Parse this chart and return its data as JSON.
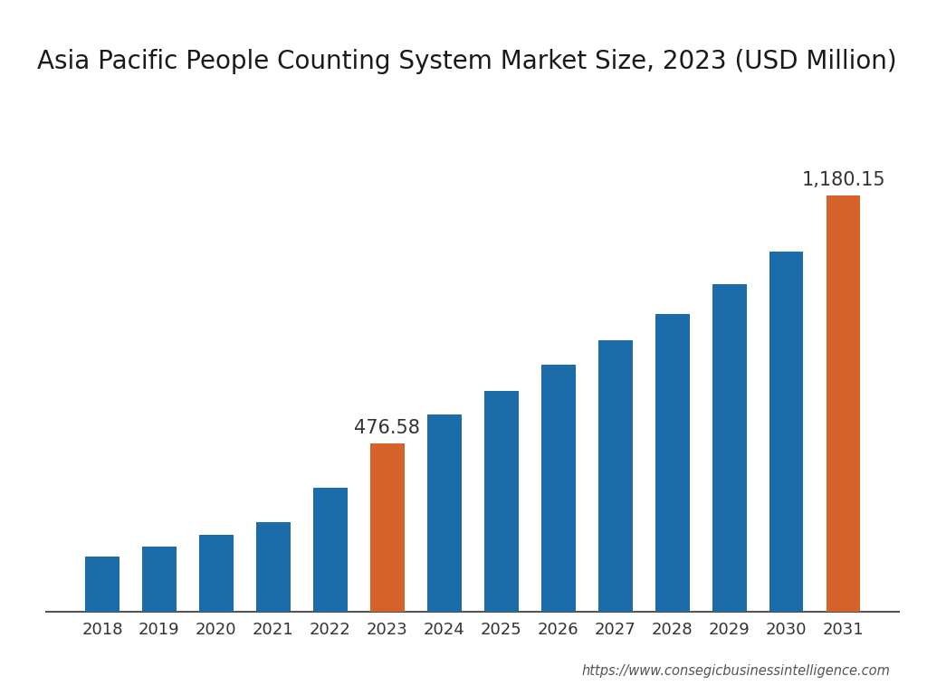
{
  "title": "Asia Pacific People Counting System Market Size, 2023 (USD Million)",
  "categories": [
    "2018",
    "2019",
    "2020",
    "2021",
    "2022",
    "2023",
    "2024",
    "2025",
    "2026",
    "2027",
    "2028",
    "2029",
    "2030",
    "2031"
  ],
  "values": [
    155,
    185,
    218,
    255,
    350,
    476.58,
    560,
    625,
    700,
    770,
    845,
    930,
    1020,
    1180.15
  ],
  "bar_colors": [
    "#1b6ca8",
    "#1b6ca8",
    "#1b6ca8",
    "#1b6ca8",
    "#1b6ca8",
    "#d4622a",
    "#1b6ca8",
    "#1b6ca8",
    "#1b6ca8",
    "#1b6ca8",
    "#1b6ca8",
    "#1b6ca8",
    "#1b6ca8",
    "#d4622a"
  ],
  "label_bars": [
    5,
    13
  ],
  "label_values": [
    "476.58",
    "1,180.15"
  ],
  "background_color": "#ffffff",
  "title_fontsize": 20,
  "tick_fontsize": 13,
  "label_fontsize": 15,
  "footer_text": "https://www.consegicbusinessintelligence.com",
  "ylim": [
    0,
    1380
  ]
}
